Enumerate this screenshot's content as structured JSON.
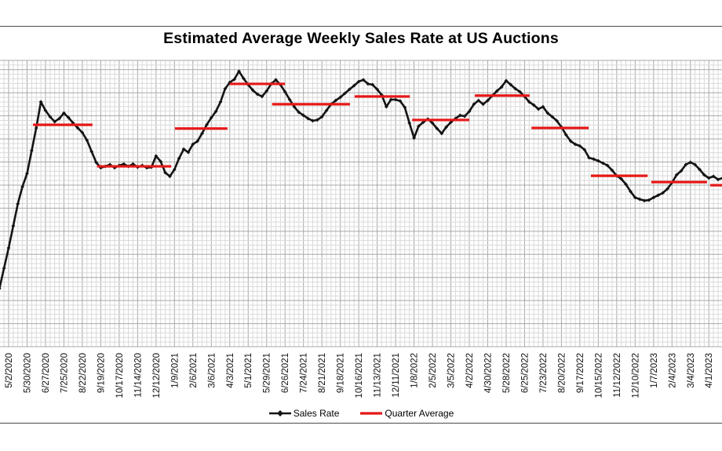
{
  "title": "Estimated Average Weekly Sales Rate at US Auctions",
  "legend": {
    "sales_rate_label": "Sales Rate",
    "quarter_average_label": "Quarter Average"
  },
  "colors": {
    "sales_line": "#141414",
    "quarter_avg": "#e61717",
    "grid_minor": "#d9d9d9",
    "grid_major": "#a8a8a8",
    "text": "#111111",
    "rule": "#4a4a4a",
    "background": "#ffffff"
  },
  "chart_data": {
    "type": "line",
    "title": "Estimated Average Weekly Sales Rate at US Auctions",
    "xlabel": "",
    "ylabel": "",
    "x_axis": {
      "tick_labels": [
        "5/2/2020",
        "5/30/2020",
        "6/27/2020",
        "7/25/2020",
        "8/22/2020",
        "9/19/2020",
        "10/17/2020",
        "11/14/2020",
        "12/12/2020",
        "1/9/2021",
        "2/6/2021",
        "3/6/2021",
        "4/3/2021",
        "5/1/2021",
        "5/29/2021",
        "6/26/2021",
        "7/24/2021",
        "8/21/2021",
        "9/18/2021",
        "10/16/2021",
        "11/13/2021",
        "12/11/2021",
        "1/8/2022",
        "2/5/2022",
        "3/5/2022",
        "4/2/2022",
        "4/30/2022",
        "5/28/2022",
        "6/25/2022",
        "7/23/2022",
        "8/20/2022",
        "9/17/2022",
        "10/15/2022",
        "11/12/2022",
        "12/10/2022",
        "1/7/2023",
        "2/4/2023",
        "3/4/2023",
        "4/1/2023"
      ],
      "weeks_between_ticks": 4,
      "label_rotation_deg": 90
    },
    "y_axis": {
      "labels_visible": false,
      "units": "percent of plot height (no y-axis labels shown in image)",
      "range": [
        0,
        100
      ]
    },
    "grid": {
      "minor": true,
      "major": true
    },
    "legend_position": "bottom-center",
    "series": [
      {
        "name": "Sales Rate",
        "style": "line-with-diamond-markers",
        "start_week": -2,
        "weekly_values_pct": [
          20.3,
          27.4,
          34.5,
          42.2,
          49.9,
          55.9,
          60.5,
          68.5,
          76.4,
          85.5,
          82.5,
          80.3,
          78.6,
          79.7,
          81.6,
          80.0,
          78.1,
          76.4,
          74.8,
          72.1,
          68.2,
          64.4,
          62.5,
          63.0,
          63.6,
          62.5,
          63.3,
          63.8,
          63.0,
          63.8,
          62.7,
          63.3,
          62.5,
          62.7,
          66.6,
          64.7,
          60.8,
          59.5,
          61.9,
          65.8,
          69.0,
          67.9,
          70.7,
          71.8,
          74.5,
          77.5,
          80.0,
          82.2,
          85.5,
          90.1,
          92.3,
          93.4,
          96.2,
          93.7,
          91.5,
          89.6,
          88.2,
          87.4,
          89.3,
          91.8,
          93.2,
          91.5,
          89.0,
          86.3,
          83.8,
          81.9,
          80.8,
          79.7,
          78.9,
          79.2,
          80.3,
          82.5,
          84.7,
          86.0,
          87.1,
          88.5,
          89.9,
          91.2,
          92.6,
          93.2,
          91.8,
          91.5,
          89.9,
          87.9,
          83.8,
          86.3,
          86.3,
          85.8,
          83.6,
          78.1,
          72.9,
          77.0,
          78.4,
          79.5,
          78.1,
          76.2,
          74.5,
          76.7,
          78.4,
          79.7,
          80.8,
          80.5,
          82.2,
          84.7,
          86.0,
          84.7,
          86.0,
          87.7,
          89.3,
          90.7,
          92.9,
          91.5,
          90.1,
          89.0,
          87.4,
          85.5,
          84.4,
          83.0,
          83.8,
          81.6,
          80.3,
          78.9,
          76.7,
          74.0,
          71.8,
          70.7,
          70.1,
          68.8,
          66.0,
          65.5,
          64.9,
          64.1,
          63.3,
          61.6,
          59.7,
          58.6,
          56.7,
          54.2,
          52.1,
          51.5,
          51.0,
          51.2,
          52.1,
          52.9,
          53.7,
          55.1,
          57.3,
          60.0,
          61.4,
          63.6,
          64.4,
          63.6,
          61.9,
          60.0,
          58.9,
          59.5,
          58.4,
          58.9
        ]
      },
      {
        "name": "Quarter Average",
        "style": "horizontal-segments",
        "segments": [
          {
            "start_week": 5.3,
            "end_week": 18.2,
            "value": 77.5
          },
          {
            "start_week": 19.2,
            "end_week": 35.3,
            "value": 63.0
          },
          {
            "start_week": 36.1,
            "end_week": 47.5,
            "value": 76.2
          },
          {
            "start_week": 48.0,
            "end_week": 60.0,
            "value": 91.8
          },
          {
            "start_week": 57.2,
            "end_week": 74.1,
            "value": 84.7
          },
          {
            "start_week": 75.1,
            "end_week": 87.1,
            "value": 87.4
          },
          {
            "start_week": 87.6,
            "end_week": 100.0,
            "value": 79.2
          },
          {
            "start_week": 101.2,
            "end_week": 113.1,
            "value": 87.7
          },
          {
            "start_week": 113.5,
            "end_week": 125.9,
            "value": 76.4
          },
          {
            "start_week": 126.4,
            "end_week": 138.7,
            "value": 59.7
          },
          {
            "start_week": 139.5,
            "end_week": 151.6,
            "value": 57.5
          },
          {
            "start_week": 152.3,
            "end_week": 155.0,
            "value": 56.4
          }
        ]
      }
    ]
  }
}
